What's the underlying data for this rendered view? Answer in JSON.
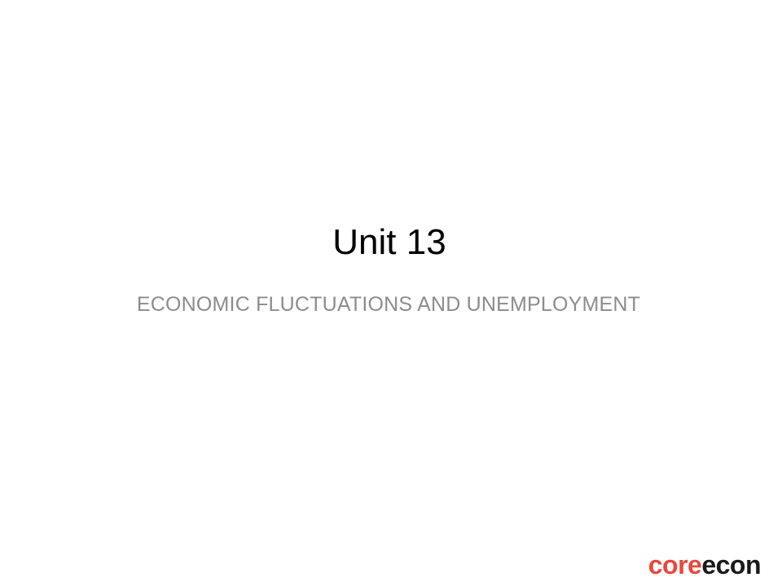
{
  "slide": {
    "title": "Unit 13",
    "subtitle": "ECONOMIC FLUCTUATIONS AND UNEMPLOYMENT"
  },
  "logo": {
    "part1": "core",
    "part2": "econ",
    "colors": {
      "part1": "#e8473c",
      "part2": "#1a1a1a"
    }
  }
}
